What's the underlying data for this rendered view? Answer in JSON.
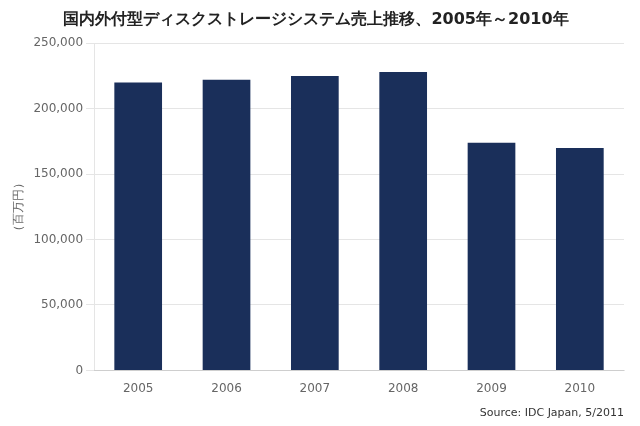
{
  "chart_data": {
    "type": "bar",
    "title": "国内外付型ディスクストレージシステム売上推移、2005年～2010年",
    "ylabel": "（百万円）",
    "annotation": "Source: IDC Japan, 5/2011",
    "categories": [
      "2005",
      "2006",
      "2007",
      "2008",
      "2009",
      "2010"
    ],
    "values": [
      220000,
      222000,
      225000,
      228000,
      174000,
      170000
    ],
    "color": "#1a2f5a",
    "ylim": [
      0,
      250000
    ],
    "yticks": [
      0,
      {
        "value": 50000,
        "label": "50,000"
      },
      {
        "value": 100000,
        "label": "100,000"
      },
      {
        "value": 150000,
        "label": "150,000"
      },
      {
        "value": 200000,
        "label": "200,000"
      },
      {
        "value": 250000,
        "label": "250,000"
      }
    ],
    "grid": true
  }
}
